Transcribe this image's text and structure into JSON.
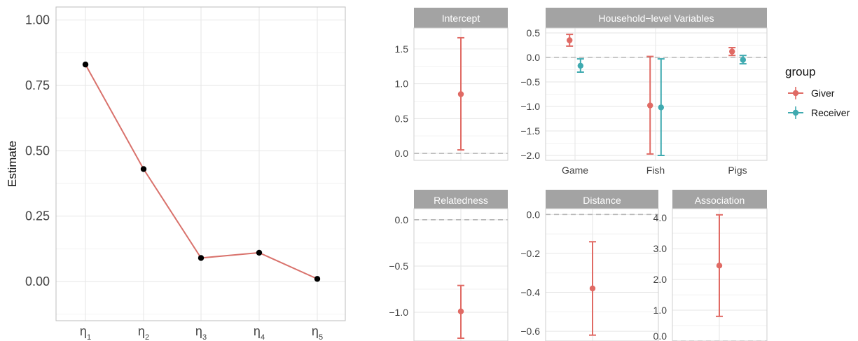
{
  "colors": {
    "giver": "#E06A64",
    "receiver": "#3FAAB0",
    "line": "#D9726C",
    "point": "#000000",
    "grid": "#E6E6E6",
    "strip": "#A3A3A3",
    "zero": "#B5B5B5"
  },
  "legend": {
    "title": "group",
    "entries": [
      "Giver",
      "Receiver"
    ],
    "placement": "right"
  },
  "chart_data": [
    {
      "type": "line",
      "title": "",
      "xlabel": "",
      "ylabel": "Estimate",
      "categories": [
        "η1",
        "η2",
        "η3",
        "η4",
        "η5"
      ],
      "category_base": "η",
      "category_subs": [
        "1",
        "2",
        "3",
        "4",
        "5"
      ],
      "values": [
        0.83,
        0.43,
        0.09,
        0.11,
        0.01
      ],
      "ylim": [
        -0.15,
        1.05
      ],
      "yticks": [
        0.0,
        0.25,
        0.5,
        0.75,
        1.0
      ],
      "ytick_labels": [
        "0.00",
        "0.25",
        "0.50",
        "0.75",
        "1.00"
      ],
      "grid": true
    },
    {
      "type": "scatter",
      "title": "Intercept",
      "ylim": [
        -0.1,
        1.8
      ],
      "yticks": [
        0.0,
        0.5,
        1.0,
        1.5
      ],
      "ytick_labels": [
        "0.0",
        "0.5",
        "1.0",
        "1.5"
      ],
      "categories": [
        ""
      ],
      "series": [
        {
          "name": "Giver",
          "x": [
            0
          ],
          "estimate": [
            0.85
          ],
          "lower": [
            0.05
          ],
          "upper": [
            1.66
          ]
        }
      ]
    },
    {
      "type": "scatter",
      "title": "Household−level Variables",
      "ylim": [
        -2.1,
        0.6
      ],
      "yticks": [
        -2.0,
        -1.5,
        -1.0,
        -0.5,
        0.0,
        0.5
      ],
      "ytick_labels": [
        "−2.0",
        "−1.5",
        "−1.0",
        "−0.5",
        "0.0",
        "0.5"
      ],
      "categories": [
        "Game",
        "Fish",
        "Pigs"
      ],
      "series": [
        {
          "name": "Giver",
          "estimate": [
            0.35,
            -0.98,
            0.12
          ],
          "lower": [
            0.23,
            -1.97,
            0.04
          ],
          "upper": [
            0.47,
            0.02,
            0.2
          ]
        },
        {
          "name": "Receiver",
          "estimate": [
            -0.17,
            -1.02,
            -0.05
          ],
          "lower": [
            -0.3,
            -2.0,
            -0.13
          ],
          "upper": [
            -0.03,
            -0.03,
            0.04
          ]
        }
      ]
    },
    {
      "type": "scatter",
      "title": "Relatedness",
      "ylim": [
        -1.31,
        0.12
      ],
      "yticks": [
        -1.0,
        -0.5,
        0.0
      ],
      "ytick_labels": [
        "−1.0",
        "−0.5",
        "0.0"
      ],
      "categories": [
        ""
      ],
      "series": [
        {
          "name": "Giver",
          "estimate": [
            -0.99
          ],
          "lower": [
            -1.28
          ],
          "upper": [
            -0.71
          ]
        }
      ]
    },
    {
      "type": "scatter",
      "title": "Distance",
      "ylim": [
        -0.65,
        0.03
      ],
      "yticks": [
        -0.6,
        -0.4,
        -0.2,
        0.0
      ],
      "ytick_labels": [
        "−0.6",
        "−0.4",
        "−0.2",
        "0.0"
      ],
      "categories": [
        ""
      ],
      "series": [
        {
          "name": "Giver",
          "estimate": [
            -0.38
          ],
          "lower": [
            -0.62
          ],
          "upper": [
            -0.14
          ]
        }
      ]
    },
    {
      "type": "scatter",
      "title": "Association",
      "ylim": [
        0.0,
        4.3
      ],
      "yticks": [
        0.0,
        1.0,
        2.0,
        3.0,
        4.0
      ],
      "ytick_labels": [
        "0.0",
        "1.0",
        "2.0",
        "3.0",
        "4.0"
      ],
      "categories": [
        ""
      ],
      "series": [
        {
          "name": "Giver",
          "estimate": [
            2.45
          ],
          "lower": [
            0.8
          ],
          "upper": [
            4.1
          ]
        }
      ]
    }
  ]
}
